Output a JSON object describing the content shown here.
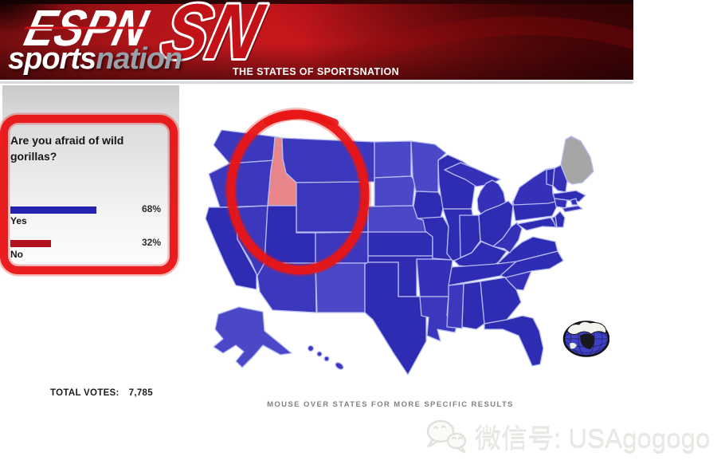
{
  "header": {
    "espn": "ESPN",
    "sn": "SN",
    "sports": "sports",
    "nation": "nation",
    "tagline": "THE STATES OF SPORTSNATION"
  },
  "poll": {
    "question": "Are you afraid of wild gorillas?",
    "options": [
      {
        "label": "Yes",
        "pct": "68%",
        "value": 68,
        "color": "#2323b0"
      },
      {
        "label": "No",
        "pct": "32%",
        "value": 32,
        "color": "#b2121f"
      }
    ]
  },
  "footer": {
    "total_votes_label": "TOTAL VOTES:",
    "total_votes_value": "7,785",
    "map_instruction": "MOUSE OVER STATES FOR MORE SPECIFIC RESULTS"
  },
  "watermark": {
    "icon": "wechat-icon",
    "text": "微信号: USAgogogo"
  },
  "annotation": {
    "marker_color": "#e61717",
    "circled_state": "Idaho",
    "circled_element": "poll-panel"
  },
  "map": {
    "colors": {
      "dark": "#2e2cb2",
      "medium": "#3c38bd",
      "medium2": "#3530b8",
      "light": "#4b48c8",
      "idaho": "#e9868c",
      "maine": "#a6a6a6",
      "border": "#b7bdf2"
    },
    "states": [
      {
        "id": "WA",
        "name": "Washington",
        "shade": "medium"
      },
      {
        "id": "OR",
        "name": "Oregon",
        "shade": "medium"
      },
      {
        "id": "CA",
        "name": "California",
        "shade": "dark"
      },
      {
        "id": "NV",
        "name": "Nevada",
        "shade": "medium"
      },
      {
        "id": "ID",
        "name": "Idaho",
        "shade": "idaho"
      },
      {
        "id": "MT",
        "name": "Montana",
        "shade": "medium"
      },
      {
        "id": "WY",
        "name": "Wyoming",
        "shade": "medium"
      },
      {
        "id": "UT",
        "name": "Utah",
        "shade": "dark"
      },
      {
        "id": "CO",
        "name": "Colorado",
        "shade": "medium"
      },
      {
        "id": "AZ",
        "name": "Arizona",
        "shade": "medium"
      },
      {
        "id": "NM",
        "name": "New Mexico",
        "shade": "light"
      },
      {
        "id": "ND",
        "name": "North Dakota",
        "shade": "light"
      },
      {
        "id": "SD",
        "name": "South Dakota",
        "shade": "light"
      },
      {
        "id": "NE",
        "name": "Nebraska",
        "shade": "light"
      },
      {
        "id": "KS",
        "name": "Kansas",
        "shade": "dark"
      },
      {
        "id": "OK",
        "name": "Oklahoma",
        "shade": "dark"
      },
      {
        "id": "TX",
        "name": "Texas",
        "shade": "dark"
      },
      {
        "id": "MN",
        "name": "Minnesota",
        "shade": "light"
      },
      {
        "id": "IA",
        "name": "Iowa",
        "shade": "dark"
      },
      {
        "id": "MO",
        "name": "Missouri",
        "shade": "dark"
      },
      {
        "id": "AR",
        "name": "Arkansas",
        "shade": "medium2"
      },
      {
        "id": "LA",
        "name": "Louisiana",
        "shade": "medium"
      },
      {
        "id": "WI",
        "name": "Wisconsin",
        "shade": "dark"
      },
      {
        "id": "IL",
        "name": "Illinois",
        "shade": "dark"
      },
      {
        "id": "MI",
        "name": "Michigan",
        "shade": "medium2"
      },
      {
        "id": "IN",
        "name": "Indiana",
        "shade": "dark"
      },
      {
        "id": "OH",
        "name": "Ohio",
        "shade": "dark"
      },
      {
        "id": "KY",
        "name": "Kentucky",
        "shade": "dark"
      },
      {
        "id": "TN",
        "name": "Tennessee",
        "shade": "dark"
      },
      {
        "id": "MS",
        "name": "Mississippi",
        "shade": "medium"
      },
      {
        "id": "AL",
        "name": "Alabama",
        "shade": "dark"
      },
      {
        "id": "GA",
        "name": "Georgia",
        "shade": "dark"
      },
      {
        "id": "FL",
        "name": "Florida",
        "shade": "dark"
      },
      {
        "id": "SC",
        "name": "South Carolina",
        "shade": "medium2"
      },
      {
        "id": "NC",
        "name": "North Carolina",
        "shade": "dark"
      },
      {
        "id": "VA",
        "name": "Virginia",
        "shade": "dark"
      },
      {
        "id": "WV",
        "name": "West Virginia",
        "shade": "medium2"
      },
      {
        "id": "PA",
        "name": "Pennsylvania",
        "shade": "dark"
      },
      {
        "id": "MD",
        "name": "Maryland",
        "shade": "dark"
      },
      {
        "id": "DE",
        "name": "Delaware",
        "shade": "dark"
      },
      {
        "id": "NJ",
        "name": "New Jersey",
        "shade": "dark"
      },
      {
        "id": "NY",
        "name": "New York",
        "shade": "medium2"
      },
      {
        "id": "VT",
        "name": "Vermont",
        "shade": "dark"
      },
      {
        "id": "NH",
        "name": "New Hampshire",
        "shade": "medium2"
      },
      {
        "id": "ME",
        "name": "Maine",
        "shade": "maine"
      },
      {
        "id": "MA",
        "name": "Massachusetts",
        "shade": "dark"
      },
      {
        "id": "CT",
        "name": "Connecticut",
        "shade": "medium2"
      },
      {
        "id": "RI",
        "name": "Rhode Island",
        "shade": "medium2"
      },
      {
        "id": "AK",
        "name": "Alaska",
        "shade": "light"
      },
      {
        "id": "HI",
        "name": "Hawaii",
        "shade": "medium"
      }
    ]
  }
}
